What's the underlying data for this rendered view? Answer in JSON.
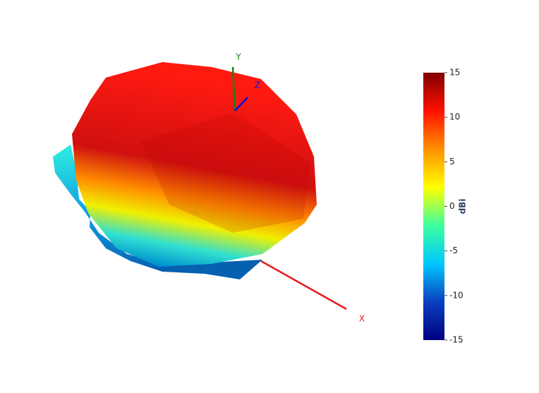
{
  "chart_data": {
    "type": "surface3d",
    "axis_labels": {
      "x": "X",
      "y": "Y",
      "z": "Z"
    },
    "axis_colors": {
      "x": "#e41a1c",
      "y": "#1a7f1a",
      "z": "#1010e0"
    },
    "colorbar": {
      "title": "dBi",
      "lim": [
        -15,
        15
      ],
      "ticks": [
        -15,
        -10,
        -5,
        0,
        5,
        10,
        15
      ],
      "colorscale": [
        "#000080",
        "#0a3fc0",
        "#00c8ff",
        "#3dff9e",
        "#ffff00",
        "#ff9000",
        "#ff1000",
        "#800000"
      ]
    }
  }
}
